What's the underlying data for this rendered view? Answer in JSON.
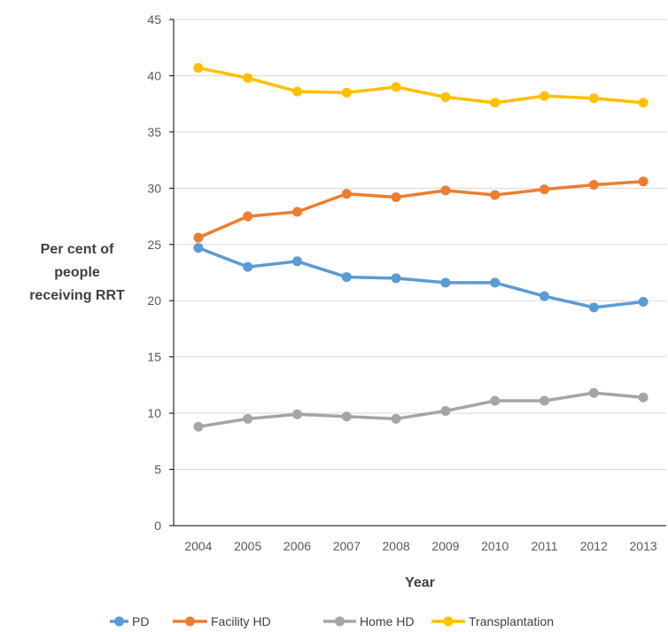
{
  "chart_data": {
    "type": "line",
    "x": [
      2004,
      2005,
      2006,
      2007,
      2008,
      2009,
      2010,
      2011,
      2012,
      2013
    ],
    "xlabel": "Year",
    "ylabel_lines": [
      "Per cent of",
      "people",
      "receiving RRT"
    ],
    "ylim": [
      0,
      45
    ],
    "yticks": [
      0,
      5,
      10,
      15,
      20,
      25,
      30,
      35,
      40,
      45
    ],
    "grid": true,
    "legend_position": "bottom",
    "series": [
      {
        "name": "PD",
        "color": "#5B9BD5",
        "values": [
          24.7,
          23.0,
          23.5,
          22.1,
          22.0,
          21.6,
          21.6,
          20.4,
          19.4,
          19.9
        ]
      },
      {
        "name": "Facility HD",
        "color": "#ED7D31",
        "values": [
          25.6,
          27.5,
          27.9,
          29.5,
          29.2,
          29.8,
          29.4,
          29.9,
          30.3,
          30.6
        ]
      },
      {
        "name": "Home HD",
        "color": "#A5A5A5",
        "values": [
          8.8,
          9.5,
          9.9,
          9.7,
          9.5,
          10.2,
          11.1,
          11.1,
          11.8,
          11.4
        ]
      },
      {
        "name": "Transplantation",
        "color": "#FFC000",
        "values": [
          40.7,
          39.8,
          38.6,
          38.5,
          39.0,
          38.1,
          37.6,
          38.2,
          38.0,
          37.6
        ]
      }
    ]
  }
}
